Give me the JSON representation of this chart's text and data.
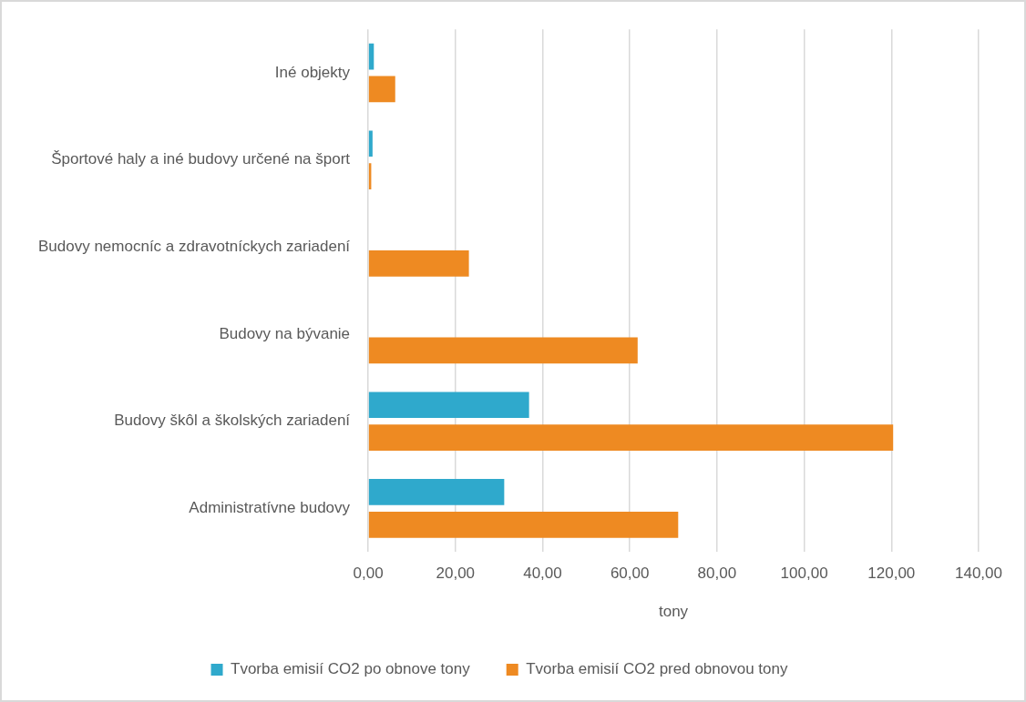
{
  "chart_data": {
    "type": "bar",
    "orientation": "horizontal",
    "xlabel": "tony",
    "categories": [
      "Iné objekty",
      "Športové haly a iné budovy určené na šport",
      "Budovy nemocníc a zdravotníckych zariadení",
      "Budovy na bývanie",
      "Budovy škôl a školských zariadení",
      "Administratívne budovy"
    ],
    "series": [
      {
        "name": "Tvorba emisií CO2 po obnove tony",
        "color": "#2fa9cc",
        "values": [
          1.3,
          1.0,
          null,
          null,
          36.9,
          31.2
        ]
      },
      {
        "name": "Tvorba emisií CO2 pred obnovou tony",
        "color": "#ee8a22",
        "values": [
          6.2,
          0.7,
          23.1,
          61.8,
          120.4,
          71.1
        ]
      }
    ],
    "xlim": [
      0,
      140
    ],
    "xticks": [
      {
        "value": 0,
        "label": "0,00"
      },
      {
        "value": 20,
        "label": "20,00"
      },
      {
        "value": 40,
        "label": "40,00"
      },
      {
        "value": 60,
        "label": "60,00"
      },
      {
        "value": 80,
        "label": "80,00"
      },
      {
        "value": 100,
        "label": "100,00"
      },
      {
        "value": 120,
        "label": "120,00"
      },
      {
        "value": 140,
        "label": "140,00"
      }
    ],
    "grid": "x",
    "legend": "bottom"
  }
}
